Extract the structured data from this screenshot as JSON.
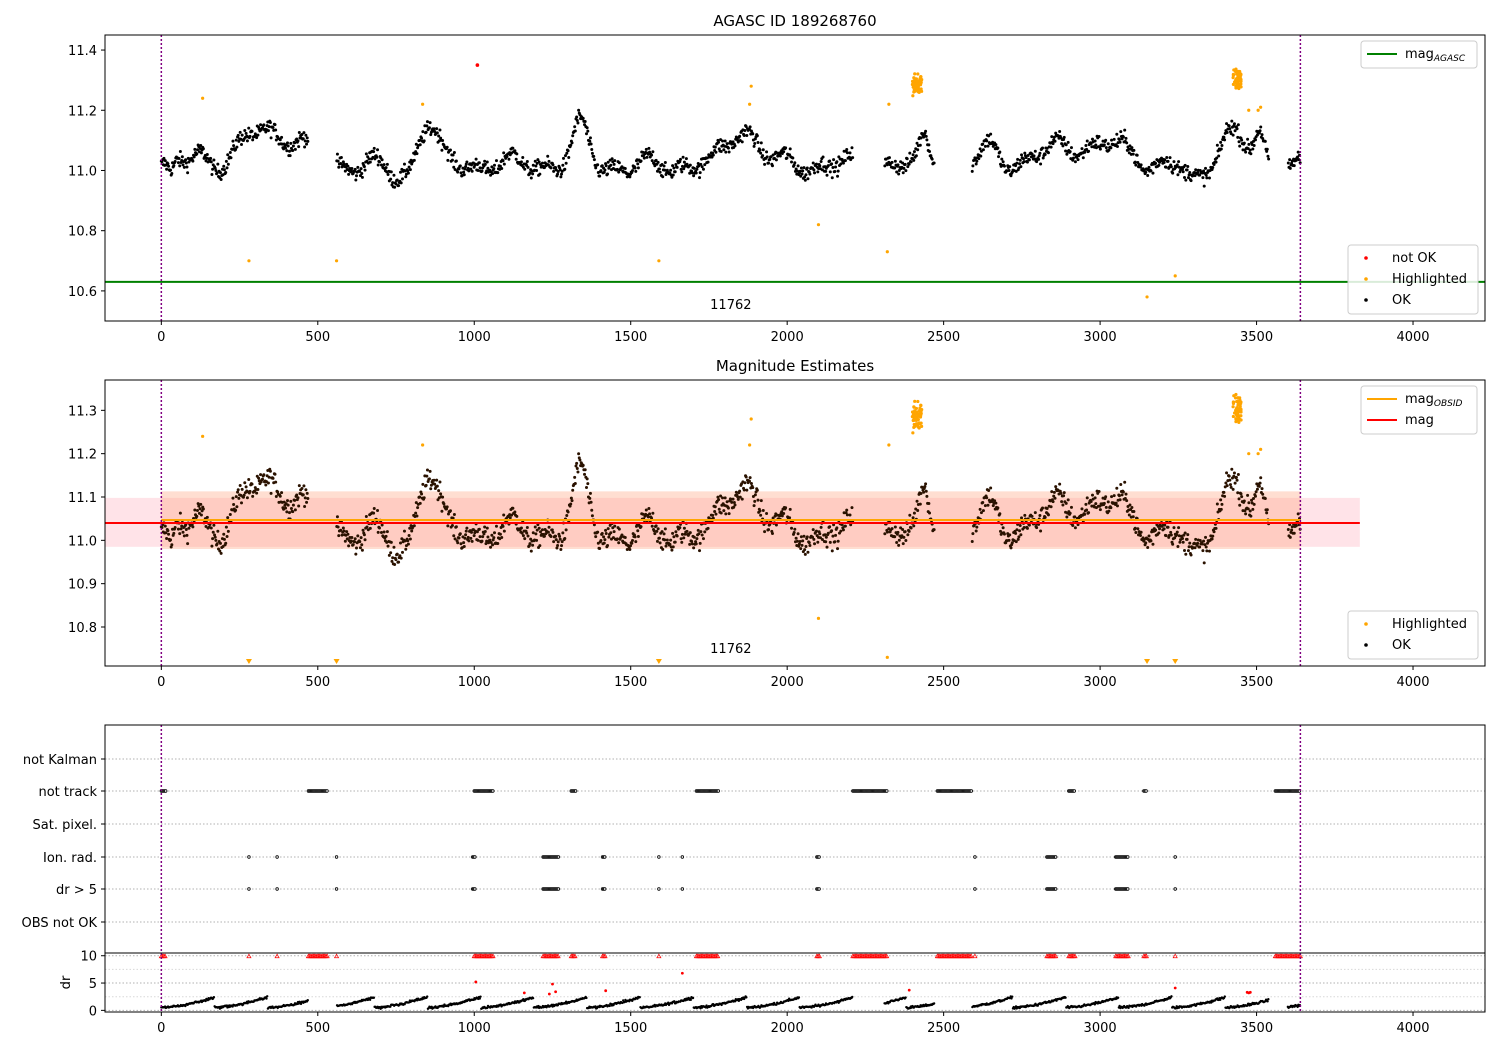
{
  "chart_data": [
    {
      "type": "scatter",
      "title": "AGASC ID 189268760",
      "xlim": [
        -180,
        4230
      ],
      "ylim": [
        10.5,
        11.45
      ],
      "x_ticks": [
        0,
        500,
        1000,
        1500,
        2000,
        2500,
        3000,
        3500,
        4000
      ],
      "y_ticks": [
        {
          "value": 10.6,
          "label": "10.6"
        },
        {
          "value": 10.8,
          "label": "10.8"
        },
        {
          "value": 11.0,
          "label": "11.0"
        },
        {
          "value": 11.2,
          "label": "11.2"
        },
        {
          "value": 11.4,
          "label": "11.4"
        }
      ],
      "obsid_label": {
        "text": "11762",
        "x": 1820,
        "y": 10.54
      },
      "vlines": [
        {
          "x": 0,
          "color": "#800080"
        },
        {
          "x": 3640,
          "color": "#800080"
        }
      ],
      "hlines": [
        {
          "name": "mag_agasc",
          "y": 10.63,
          "color": "#008000"
        }
      ],
      "ok_series": {
        "color": "#000000",
        "baseline": 11.02,
        "gaps": [
          [
            470,
            560
          ],
          [
            2210,
            2310
          ],
          [
            2470,
            2590
          ],
          [
            3540,
            3600
          ]
        ],
        "bumps": [
          [
            30,
            -0.05,
            12
          ],
          [
            120,
            0.04,
            25
          ],
          [
            330,
            0.12,
            60
          ],
          [
            440,
            0.05,
            40
          ],
          [
            760,
            -0.04,
            40
          ],
          [
            850,
            0.14,
            30
          ],
          [
            1340,
            0.12,
            25
          ],
          [
            1500,
            -0.01,
            60
          ],
          [
            1860,
            0.12,
            45
          ],
          [
            2320,
            0.0,
            20
          ],
          [
            2440,
            0.08,
            15
          ],
          [
            2650,
            0.05,
            30
          ],
          [
            2900,
            0.06,
            80
          ],
          [
            3050,
            0.05,
            60
          ],
          [
            3300,
            -0.06,
            30
          ],
          [
            3420,
            0.11,
            40
          ],
          [
            3510,
            0.08,
            15
          ]
        ]
      },
      "highlighted": {
        "color": "#ffa500",
        "points": [
          [
            132,
            11.24
          ],
          [
            280,
            10.7
          ],
          [
            560,
            10.7
          ],
          [
            835,
            11.22
          ],
          [
            1590,
            10.7
          ],
          [
            1885,
            11.28
          ],
          [
            1880,
            11.22
          ],
          [
            2100,
            10.82
          ],
          [
            2320,
            10.73
          ],
          [
            2325,
            11.22
          ],
          [
            3150,
            10.58
          ],
          [
            3240,
            10.65
          ],
          [
            3505,
            11.2
          ],
          [
            3513,
            11.21
          ],
          [
            3475,
            11.2
          ]
        ],
        "clusters": [
          [
            2415,
            11.29,
            30,
            0.05
          ],
          [
            3440,
            11.3,
            30,
            0.05
          ]
        ]
      },
      "not_ok": {
        "color": "#ff0000",
        "points": [
          [
            1010,
            11.35
          ]
        ]
      },
      "legend_upper": [
        {
          "label": "mag",
          "sub": "AGASC",
          "color": "#008000",
          "kind": "line"
        }
      ],
      "legend_lower": [
        {
          "label": "not OK",
          "color": "#ff0000",
          "kind": "dot"
        },
        {
          "label": "Highlighted",
          "color": "#ffa500",
          "kind": "dot"
        },
        {
          "label": "OK",
          "color": "#000000",
          "kind": "dot"
        }
      ]
    },
    {
      "type": "scatter",
      "title": "Magnitude Estimates",
      "xlim": [
        -180,
        4230
      ],
      "ylim": [
        10.71,
        11.37
      ],
      "x_ticks": [
        0,
        500,
        1000,
        1500,
        2000,
        2500,
        3000,
        3500,
        4000
      ],
      "y_ticks": [
        {
          "value": 10.8,
          "label": "10.8"
        },
        {
          "value": 10.9,
          "label": "10.9"
        },
        {
          "value": 11.0,
          "label": "11.0"
        },
        {
          "value": 11.1,
          "label": "11.1"
        },
        {
          "value": 11.2,
          "label": "11.2"
        },
        {
          "value": 11.3,
          "label": "11.3"
        }
      ],
      "obsid_label": {
        "text": "11762",
        "x": 1820,
        "y": 10.74
      },
      "bands": [
        {
          "name": "mag_band",
          "x0": -180,
          "x1": 3830,
          "y0": 10.985,
          "y1": 11.098,
          "color": "#ffc0cb",
          "opacity": 0.45
        },
        {
          "name": "mag_obsid_band",
          "x0": 0,
          "x1": 3640,
          "y0": 10.98,
          "y1": 11.113,
          "color": "#ffa07a",
          "opacity": 0.35
        }
      ],
      "hlines": [
        {
          "name": "mag_obsid",
          "x0": 0,
          "x1": 3640,
          "y": 11.047,
          "color": "#ffa500"
        },
        {
          "name": "mag",
          "x0": -180,
          "x1": 3830,
          "y": 11.04,
          "color": "#ff0000"
        }
      ],
      "vlines": [
        {
          "x": 0,
          "color": "#800080"
        },
        {
          "x": 3640,
          "color": "#800080"
        }
      ],
      "triangles": [
        280,
        560,
        1590,
        3150,
        3240
      ],
      "legend_upper": [
        {
          "label": "mag",
          "sub": "OBSID",
          "color": "#ffa500",
          "kind": "line"
        },
        {
          "label": "mag",
          "sub": "",
          "color": "#ff0000",
          "kind": "line"
        }
      ],
      "legend_lower": [
        {
          "label": "Highlighted",
          "color": "#ffa500",
          "kind": "dot"
        },
        {
          "label": "OK",
          "color": "#000000",
          "kind": "dot"
        }
      ]
    },
    {
      "type": "scatter",
      "title": "",
      "xlim": [
        -180,
        4230
      ],
      "rows": [
        {
          "label": "not Kalman",
          "ranges": []
        },
        {
          "label": "not track",
          "ranges": [
            [
              0,
              15
            ],
            [
              470,
              530
            ],
            [
              1000,
              1060
            ],
            [
              1310,
              1325
            ],
            [
              1710,
              1780
            ],
            [
              2210,
              2320
            ],
            [
              2480,
              2590
            ],
            [
              2900,
              2920
            ],
            [
              3140,
              3150
            ],
            [
              3560,
              3640
            ]
          ]
        },
        {
          "label": "Sat. pixel.",
          "ranges": []
        },
        {
          "label": "Ion. rad.",
          "ranges": [
            [
              280,
              280
            ],
            [
              370,
              370
            ],
            [
              560,
              560
            ],
            [
              995,
              1005
            ],
            [
              1220,
              1270
            ],
            [
              1410,
              1420
            ],
            [
              1590,
              1590
            ],
            [
              1665,
              1665
            ],
            [
              2095,
              2105
            ],
            [
              2600,
              2600
            ],
            [
              2830,
              2860
            ],
            [
              3050,
              3090
            ],
            [
              3240,
              3240
            ]
          ]
        },
        {
          "label": "dr > 5",
          "ranges": [
            [
              280,
              280
            ],
            [
              370,
              370
            ],
            [
              560,
              560
            ],
            [
              995,
              1005
            ],
            [
              1220,
              1270
            ],
            [
              1410,
              1420
            ],
            [
              1590,
              1590
            ],
            [
              1665,
              1665
            ],
            [
              2095,
              2105
            ],
            [
              2600,
              2600
            ],
            [
              2830,
              2860
            ],
            [
              3050,
              3090
            ],
            [
              3240,
              3240
            ]
          ]
        },
        {
          "label": "OBS not OK",
          "ranges": []
        }
      ],
      "vlines": [
        {
          "x": 0,
          "color": "#800080"
        },
        {
          "x": 3640,
          "color": "#800080"
        }
      ]
    },
    {
      "type": "scatter",
      "title": "",
      "xlim": [
        -180,
        4230
      ],
      "ylim": [
        -0.3,
        10.5
      ],
      "ylabel": "dr",
      "x_ticks": [
        0,
        500,
        1000,
        1500,
        2000,
        2500,
        3000,
        3500,
        4000
      ],
      "y_ticks": [
        {
          "value": 0,
          "label": "0"
        },
        {
          "value": 5,
          "label": "5"
        },
        {
          "value": 10,
          "label": "10"
        }
      ],
      "flagged_ranges": [
        [
          0,
          15
        ],
        [
          470,
          530
        ],
        [
          560,
          560
        ],
        [
          280,
          280
        ],
        [
          370,
          370
        ],
        [
          1000,
          1060
        ],
        [
          1220,
          1270
        ],
        [
          1310,
          1325
        ],
        [
          1410,
          1420
        ],
        [
          1590,
          1590
        ],
        [
          1710,
          1780
        ],
        [
          2095,
          2105
        ],
        [
          2210,
          2320
        ],
        [
          2480,
          2590
        ],
        [
          2600,
          2600
        ],
        [
          2830,
          2860
        ],
        [
          2900,
          2920
        ],
        [
          3050,
          3090
        ],
        [
          3140,
          3150
        ],
        [
          3240,
          3240
        ],
        [
          3560,
          3640
        ]
      ],
      "red_points": [
        [
          1005,
          5.2
        ],
        [
          1665,
          6.8
        ],
        [
          1160,
          3.2
        ],
        [
          1240,
          3.0
        ],
        [
          1250,
          4.8
        ],
        [
          1260,
          3.4
        ],
        [
          1420,
          3.6
        ],
        [
          2390,
          3.7
        ],
        [
          3240,
          4.1
        ],
        [
          3470,
          3.3
        ],
        [
          3475,
          3.2
        ],
        [
          3480,
          3.3
        ]
      ],
      "vlines": [
        {
          "x": 0,
          "color": "#800080"
        },
        {
          "x": 3640,
          "color": "#800080"
        }
      ]
    }
  ]
}
